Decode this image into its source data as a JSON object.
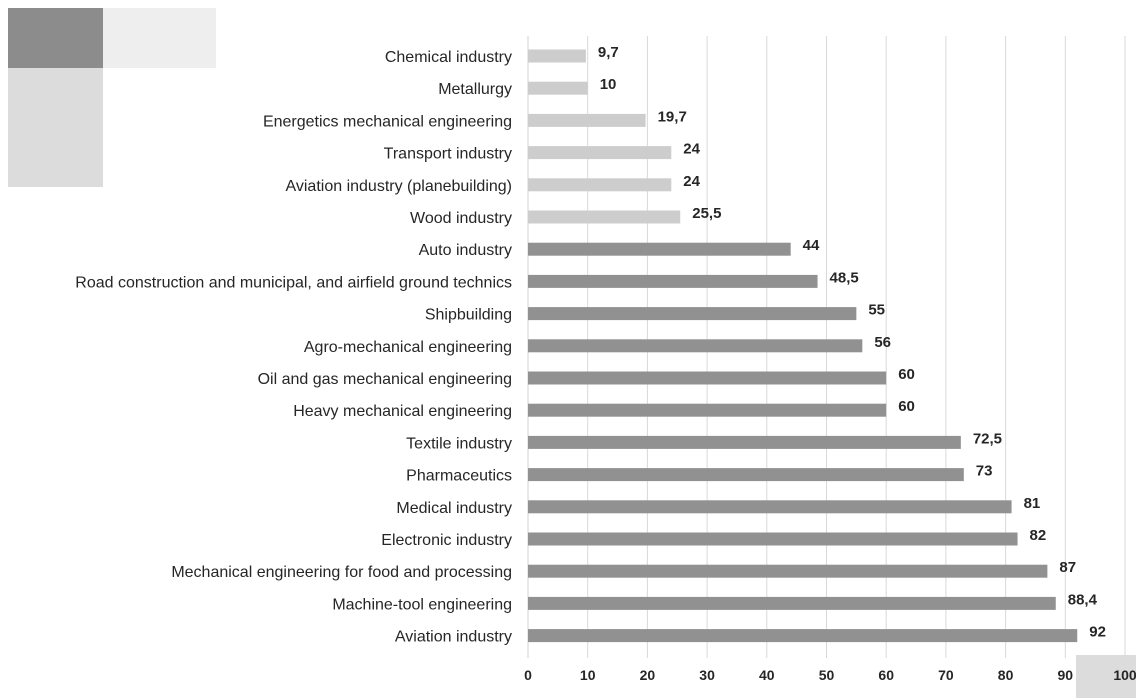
{
  "chart_data": {
    "type": "bar",
    "orientation": "horizontal",
    "categories": [
      "Chemical industry",
      "Metallurgy",
      "Energetics mechanical engineering",
      "Transport industry",
      "Aviation industry (planebuilding)",
      "Wood industry",
      "Auto industry",
      "Road construction and municipal, and airfield ground technics",
      "Shipbuilding",
      "Agro-mechanical engineering",
      "Oil and gas mechanical engineering",
      "Heavy mechanical engineering",
      "Textile industry",
      "Pharmaceutics",
      "Medical industry",
      "Electronic industry",
      "Mechanical engineering for food  and processing",
      "Machine-tool engineering",
      "Aviation industry"
    ],
    "values": [
      9.7,
      10,
      19.7,
      24,
      24,
      25.5,
      44,
      48.5,
      55,
      56,
      60,
      60,
      72.5,
      73,
      81,
      82,
      87,
      88.4,
      92
    ],
    "value_labels": [
      "9,7",
      "10",
      "19,7",
      "24",
      "24",
      "25,5",
      "44",
      "48,5",
      "55",
      "56",
      "60",
      "60",
      "72,5",
      "73",
      "81",
      "82",
      "87",
      "88,4",
      "92"
    ],
    "bar_colors": [
      "#cdcdcd",
      "#cdcdcd",
      "#cdcdcd",
      "#cdcdcd",
      "#cdcdcd",
      "#cdcdcd",
      "#919191",
      "#919191",
      "#919191",
      "#919191",
      "#919191",
      "#919191",
      "#919191",
      "#919191",
      "#919191",
      "#919191",
      "#919191",
      "#919191",
      "#919191"
    ],
    "xticks": [
      "0",
      "10",
      "20",
      "30",
      "40",
      "50",
      "60",
      "70",
      "80",
      "90",
      "100"
    ],
    "xlim": [
      0,
      100
    ],
    "grid": "vertical",
    "legend": "none",
    "title": "",
    "xlabel": "",
    "ylabel": ""
  },
  "colors": {
    "light_bar": "#cdcdcd",
    "dark_bar": "#919191",
    "gridline": "#d9d9d9",
    "text": "#262626",
    "deco_dark": "#8c8c8c",
    "deco_light": "#dcdcdc",
    "deco_pale": "#eeeeee"
  }
}
